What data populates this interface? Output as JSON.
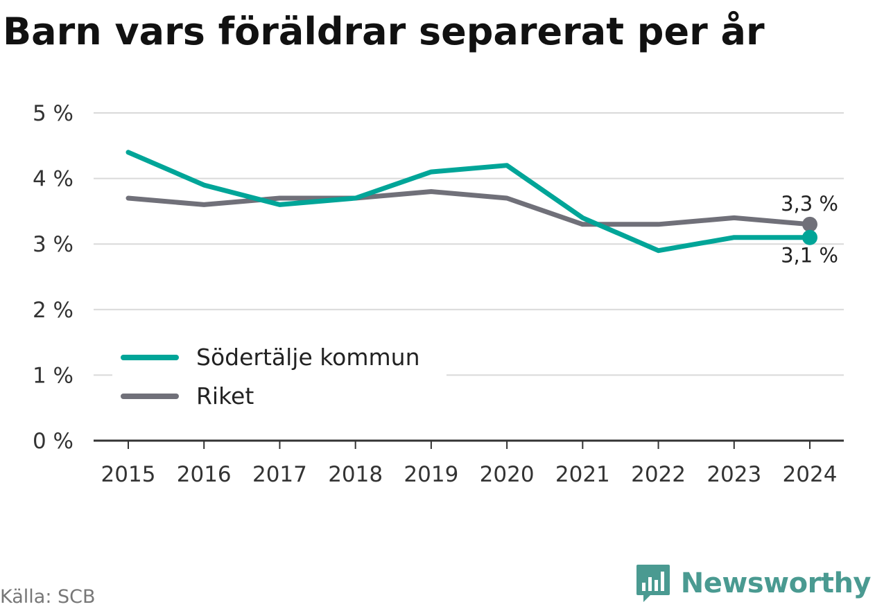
{
  "title": "Barn vars föräldrar separerat per år",
  "source": "Källa: SCB",
  "brand": "Newsworthy",
  "colors": {
    "series_0": "#00a598",
    "series_1": "#707079",
    "grid": "#d9d9d9",
    "axis": "#333333",
    "text": "#333333"
  },
  "chart_data": {
    "type": "line",
    "x": [
      "2015",
      "2016",
      "2017",
      "2018",
      "2019",
      "2020",
      "2021",
      "2022",
      "2023",
      "2024"
    ],
    "series": [
      {
        "name": "Södertälje kommun",
        "values": [
          4.4,
          3.9,
          3.6,
          3.7,
          4.1,
          4.2,
          3.4,
          2.9,
          3.1,
          3.1
        ],
        "end_label": "3,1 %"
      },
      {
        "name": "Riket",
        "values": [
          3.7,
          3.6,
          3.7,
          3.7,
          3.8,
          3.7,
          3.3,
          3.3,
          3.4,
          3.3
        ],
        "end_label": "3,3 %"
      }
    ],
    "yticks": [
      0,
      1,
      2,
      3,
      4,
      5
    ],
    "ytick_labels": [
      "0 %",
      "1 %",
      "2 %",
      "3 %",
      "4 %",
      "5 %"
    ],
    "ylim": [
      0,
      5
    ],
    "grid": true,
    "legend_position": "bottom-left"
  }
}
